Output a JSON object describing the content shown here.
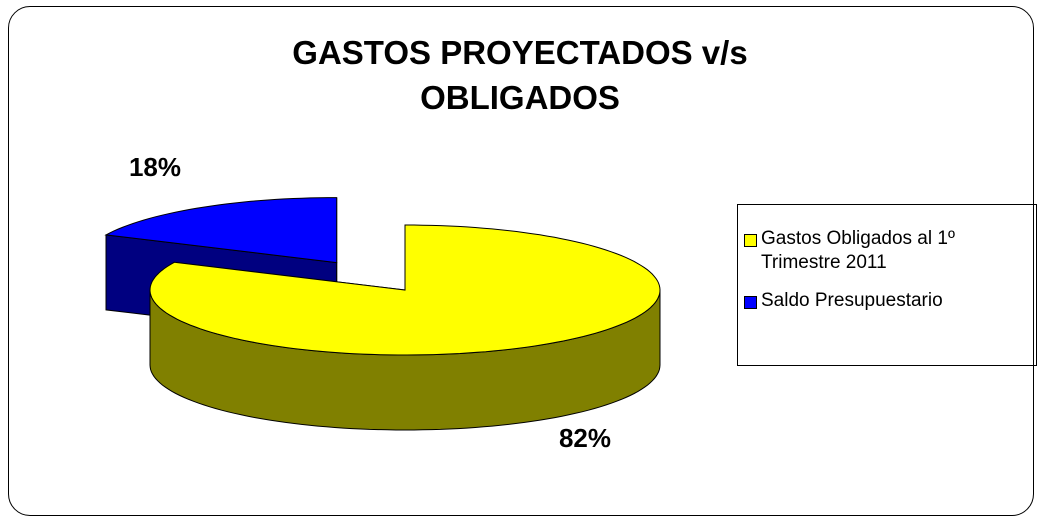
{
  "chart_data": {
    "type": "pie3d",
    "title": "GASTOS PROYECTADOS v/s OBLIGADOS",
    "categories": [
      "Gastos Obligados al 1º Trimestre 2011",
      "Saldo Presupuestario"
    ],
    "values": [
      82,
      18
    ],
    "value_labels": [
      "82%",
      "18%"
    ],
    "colors": [
      "#ffff00",
      "#0000ff"
    ],
    "side_colors": [
      "#808000",
      "#000080"
    ],
    "exploded": [
      false,
      true
    ],
    "legend": "right"
  }
}
